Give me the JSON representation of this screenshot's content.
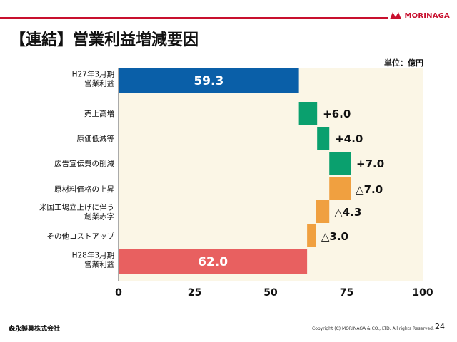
{
  "header": {
    "title": "【連結】営業利益増減要因",
    "logo_text": "MORINAGA",
    "unit_label": "単位：億円"
  },
  "footer": {
    "company": "森永製菓株式会社",
    "copyright": "Copyright (C) MORINAGA & CO., LTD. All rights Reserved.",
    "page_number": "24"
  },
  "colors": {
    "accent": "#c8102e",
    "plot_background": "#fbf6e6",
    "start_bar": "#0a5fa8",
    "increase": "#0aa06e",
    "decrease": "#f0a040",
    "end_bar": "#e86060"
  },
  "chart_data": {
    "type": "bar",
    "subtype": "waterfall",
    "orientation": "horizontal",
    "categories": [
      [
        "H27年3月期",
        "営業利益"
      ],
      [
        "売上高増"
      ],
      [
        "原価低減等"
      ],
      [
        "広告宣伝費の削減"
      ],
      [
        "原材料価格の上昇"
      ],
      [
        "米国工場立上げに伴う",
        "創業赤字"
      ],
      [
        "その他コストアップ"
      ],
      [
        "H28年3月期",
        "営業利益"
      ]
    ],
    "values": [
      59.3,
      6.0,
      4.0,
      7.0,
      -7.0,
      -4.3,
      -3.0,
      62.0
    ],
    "kinds": [
      "total",
      "increase",
      "increase",
      "increase",
      "decrease",
      "decrease",
      "decrease",
      "total"
    ],
    "data_labels": [
      "59.3",
      "+6.0",
      "+4.0",
      "+7.0",
      "△7.0",
      "△4.3",
      "△3.0",
      "62.0"
    ],
    "xlim": [
      0,
      100
    ],
    "xticks": [
      "0",
      "25",
      "50",
      "75",
      "100"
    ],
    "grid": false
  }
}
